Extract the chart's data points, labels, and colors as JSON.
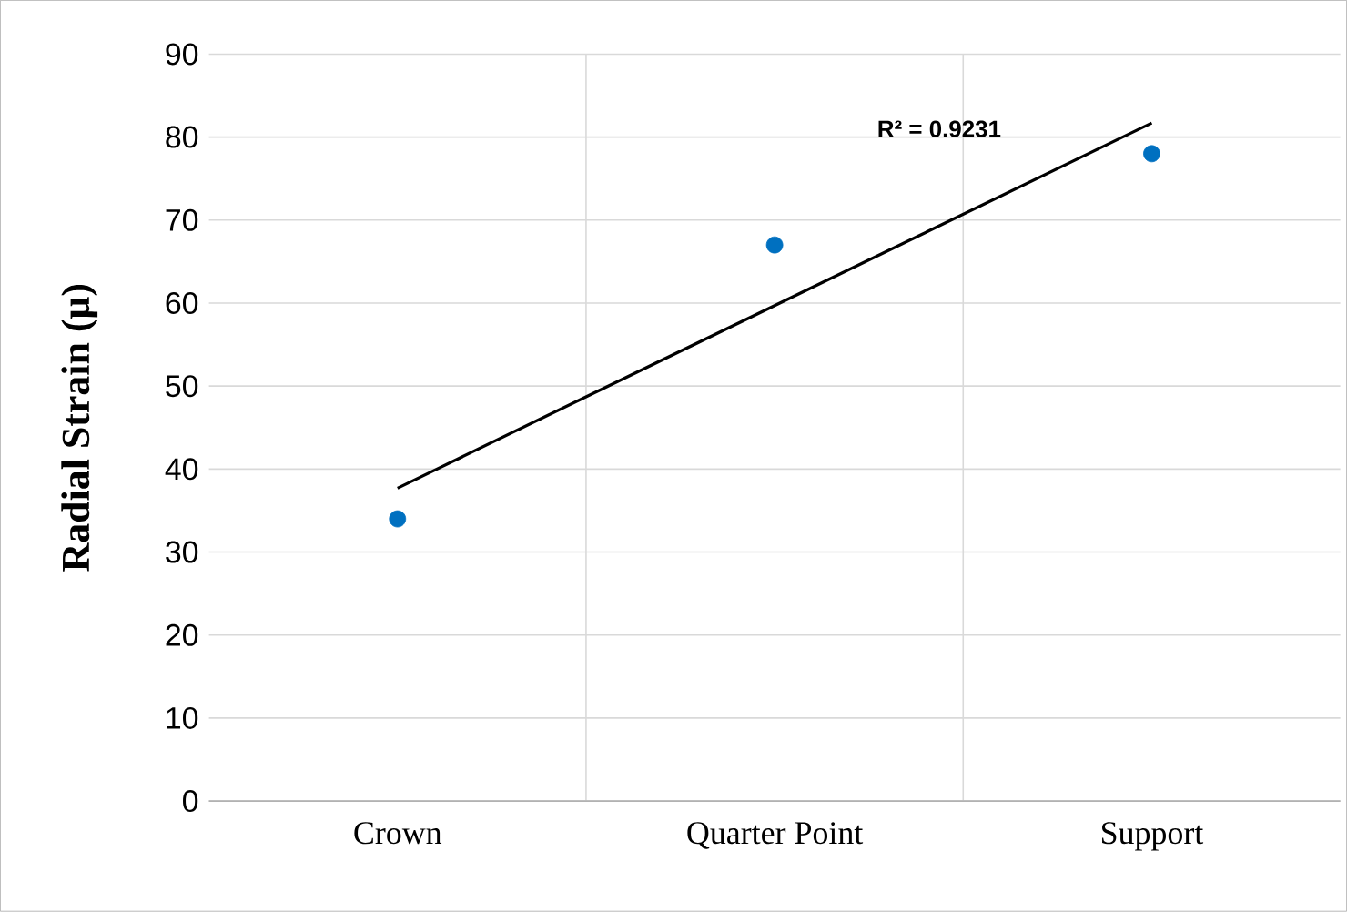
{
  "chart_data": {
    "type": "scatter",
    "ylabel": "Radial Strain (μ)",
    "categories": [
      "Crown",
      "Quarter Point",
      "Support"
    ],
    "series": [
      {
        "color": "#0070c0",
        "marker": "circle",
        "values": [
          34,
          67,
          78
        ]
      },
      {
        "type": "line",
        "color": "#000000",
        "line_style": "solid",
        "marker": "none",
        "values": [
          37.7,
          59.7,
          81.7
        ]
      }
    ],
    "ylim": [
      0,
      90
    ],
    "yticks": [
      0,
      10,
      20,
      30,
      40,
      50,
      60,
      70,
      80,
      90
    ],
    "grid": true,
    "annotations": [
      "R² = 0.9231"
    ]
  }
}
